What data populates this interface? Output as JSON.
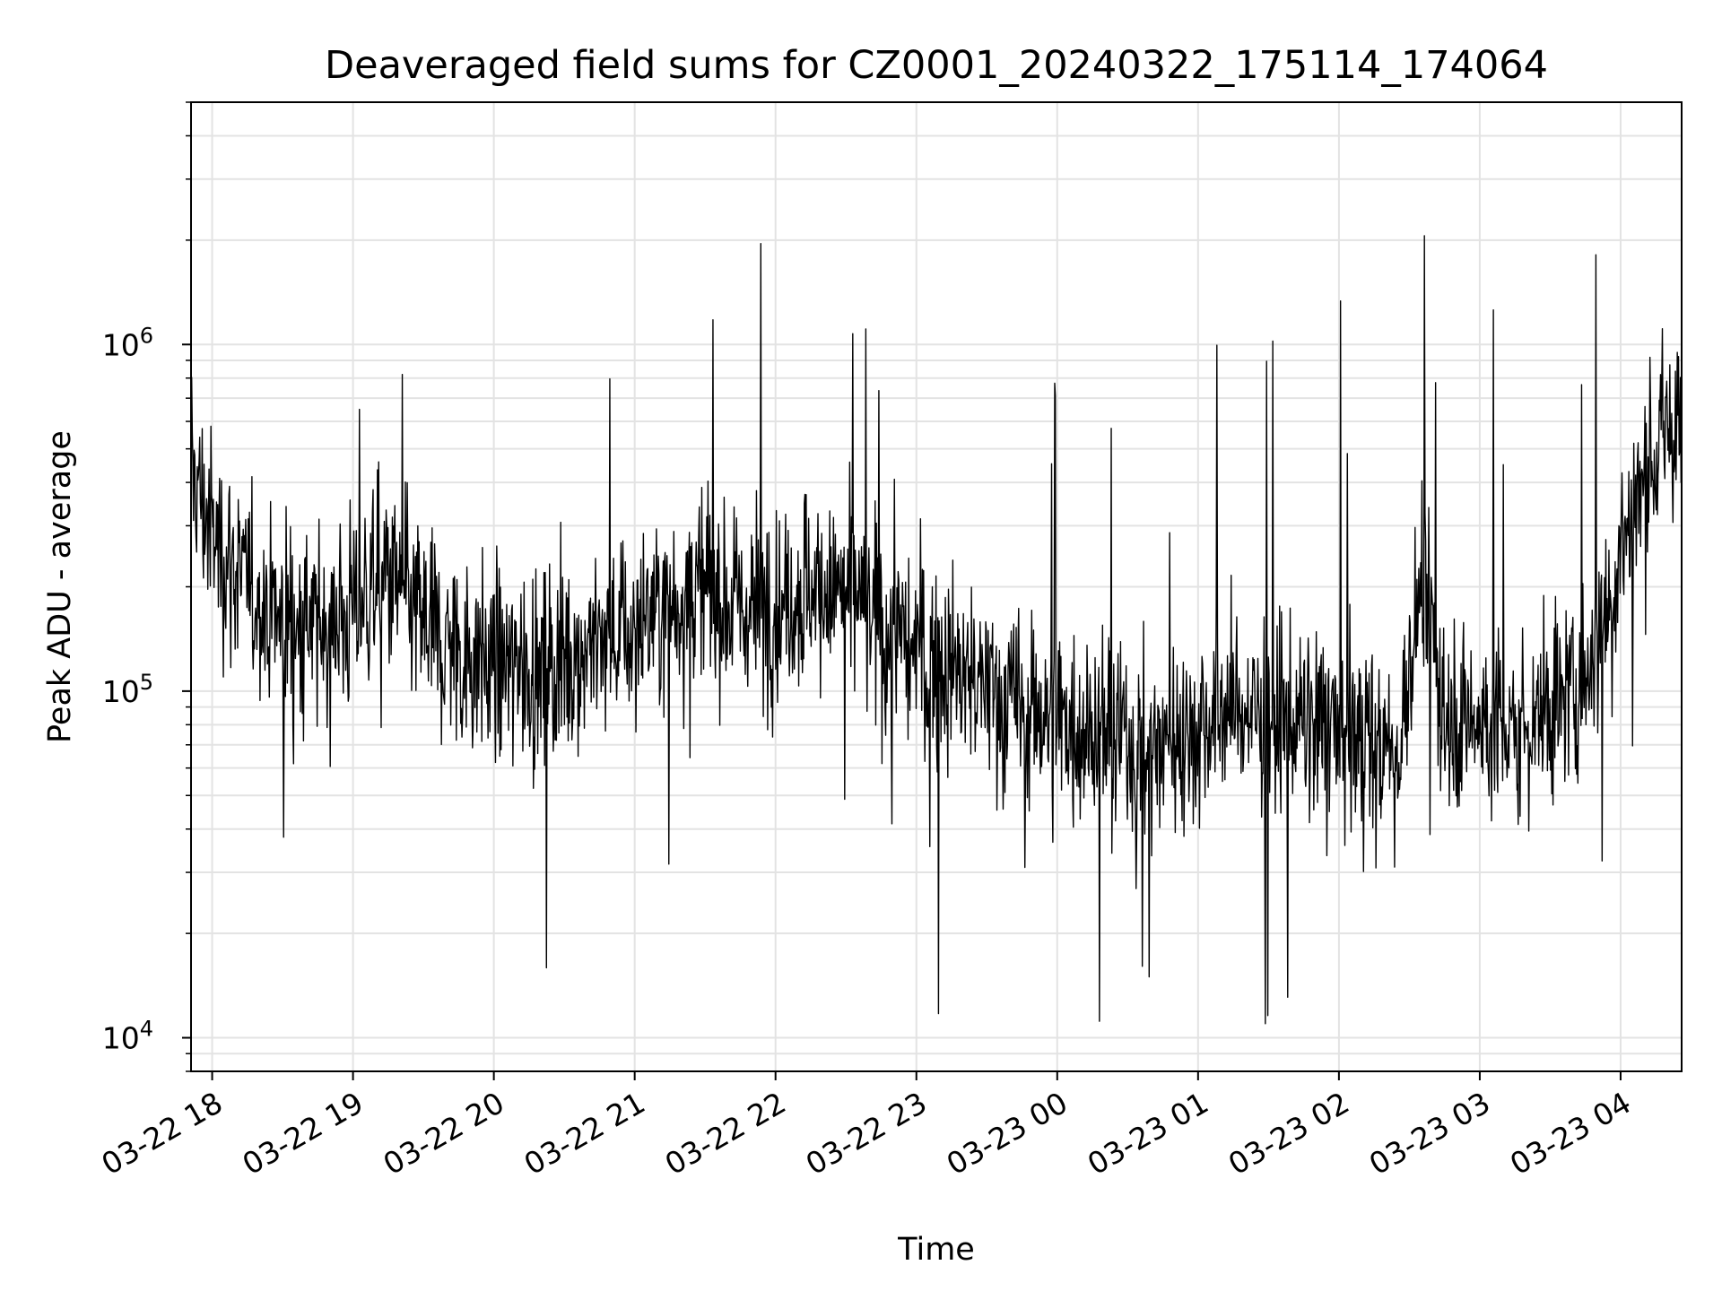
{
  "chart_data": {
    "type": "line",
    "title": "Deaveraged field sums for CZ0001_20240322_175114_174064",
    "xlabel": "Time",
    "ylabel": "Peak ADU - average",
    "yscale": "log",
    "xlim": [
      "2024-03-22T17:51",
      "2024-03-23T04:26"
    ],
    "ylim": [
      8000,
      5000000
    ],
    "x_ticks": [
      "2024-03-22T18:00",
      "2024-03-22T19:00",
      "2024-03-22T20:00",
      "2024-03-22T21:00",
      "2024-03-22T22:00",
      "2024-03-22T23:00",
      "2024-03-23T00:00",
      "2024-03-23T01:00",
      "2024-03-23T02:00",
      "2024-03-23T03:00",
      "2024-03-23T04:00"
    ],
    "x_tick_labels": [
      "03-22 18",
      "03-22 19",
      "03-22 20",
      "03-22 21",
      "03-22 22",
      "03-22 23",
      "03-23 00",
      "03-23 01",
      "03-23 02",
      "03-23 03",
      "03-23 04"
    ],
    "y_ticks": [
      10000,
      100000,
      1000000
    ],
    "grid": true,
    "line_color": "#000000",
    "series": [
      {
        "x": [
          "2024-03-22T17:51",
          "2024-03-22T18:00",
          "2024-03-22T18:15",
          "2024-03-22T18:30",
          "2024-03-22T18:45",
          "2024-03-22T19:00",
          "2024-03-22T19:15",
          "2024-03-22T19:30",
          "2024-03-22T19:45",
          "2024-03-22T20:00",
          "2024-03-22T20:15",
          "2024-03-22T20:30",
          "2024-03-22T20:45",
          "2024-03-22T21:00",
          "2024-03-22T21:15",
          "2024-03-22T21:30",
          "2024-03-22T21:45",
          "2024-03-22T22:00",
          "2024-03-22T22:15",
          "2024-03-22T22:30",
          "2024-03-22T22:45",
          "2024-03-22T23:00",
          "2024-03-22T23:15",
          "2024-03-22T23:30",
          "2024-03-22T23:45",
          "2024-03-23T00:00",
          "2024-03-23T00:15",
          "2024-03-23T00:30",
          "2024-03-23T00:45",
          "2024-03-23T01:00",
          "2024-03-23T01:15",
          "2024-03-23T01:30",
          "2024-03-23T01:45",
          "2024-03-23T02:00",
          "2024-03-23T02:15",
          "2024-03-23T02:25",
          "2024-03-23T02:35",
          "2024-03-23T02:45",
          "2024-03-23T03:00",
          "2024-03-23T03:15",
          "2024-03-23T03:30",
          "2024-03-23T03:45",
          "2024-03-23T04:00",
          "2024-03-23T04:15",
          "2024-03-23T04:26"
        ],
        "y": [
          450000,
          280000,
          200000,
          160000,
          150000,
          170000,
          210000,
          160000,
          130000,
          120000,
          115000,
          125000,
          140000,
          150000,
          180000,
          200000,
          170000,
          180000,
          200000,
          190000,
          150000,
          130000,
          115000,
          100000,
          90000,
          85000,
          80000,
          70000,
          70000,
          80000,
          90000,
          85000,
          80000,
          75000,
          70000,
          65000,
          200000,
          90000,
          80000,
          75000,
          90000,
          110000,
          250000,
          500000,
          600000
        ]
      }
    ]
  }
}
